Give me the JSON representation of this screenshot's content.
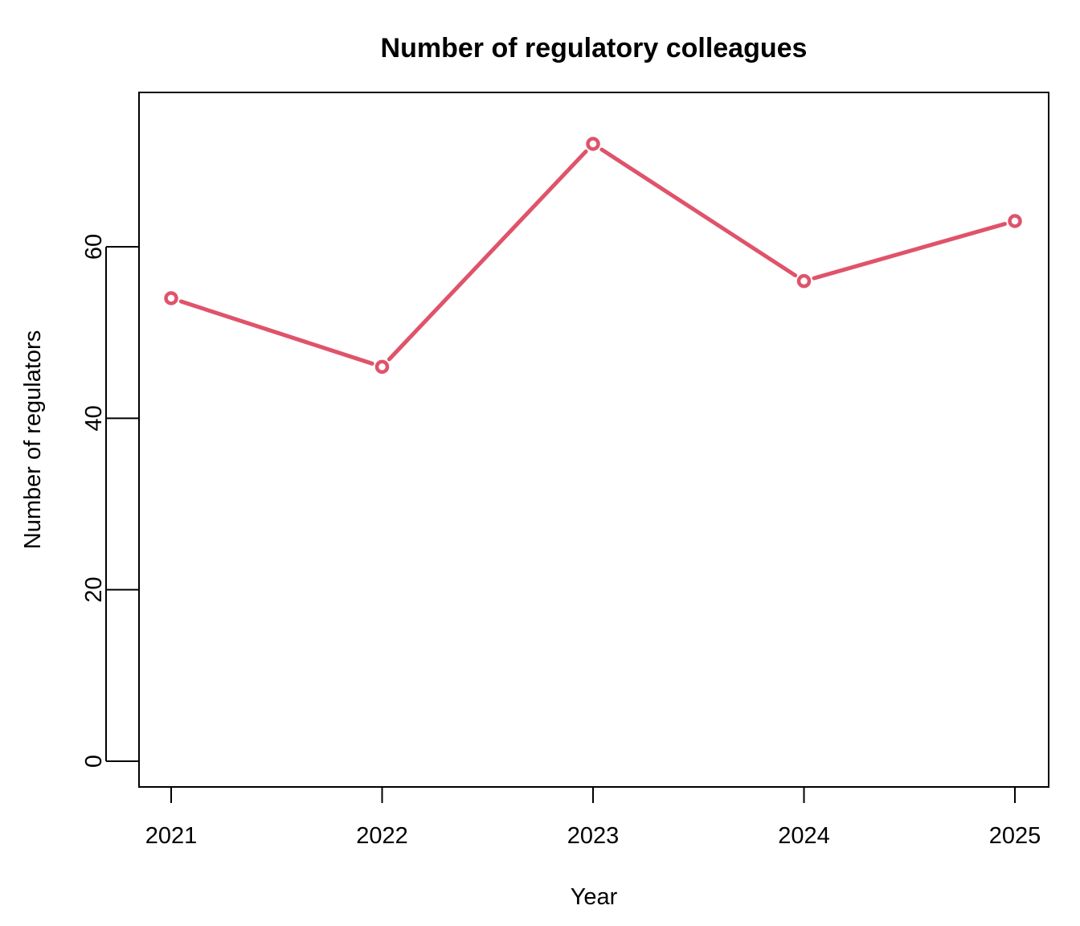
{
  "chart_data": {
    "type": "line",
    "title": "Number of regulatory colleagues",
    "xlabel": "Year",
    "ylabel": "Number of regulators",
    "x": [
      "2021",
      "2022",
      "2023",
      "2024",
      "2025"
    ],
    "series": [
      {
        "values": [
          54,
          46,
          72,
          56,
          63
        ],
        "color": "#DF536B"
      }
    ],
    "xticks": [
      "2021",
      "2022",
      "2023",
      "2024",
      "2025"
    ],
    "yticks": [
      "0",
      "20",
      "40",
      "60"
    ],
    "ylim": [
      -3,
      78
    ],
    "grid": false,
    "legend": "none"
  }
}
